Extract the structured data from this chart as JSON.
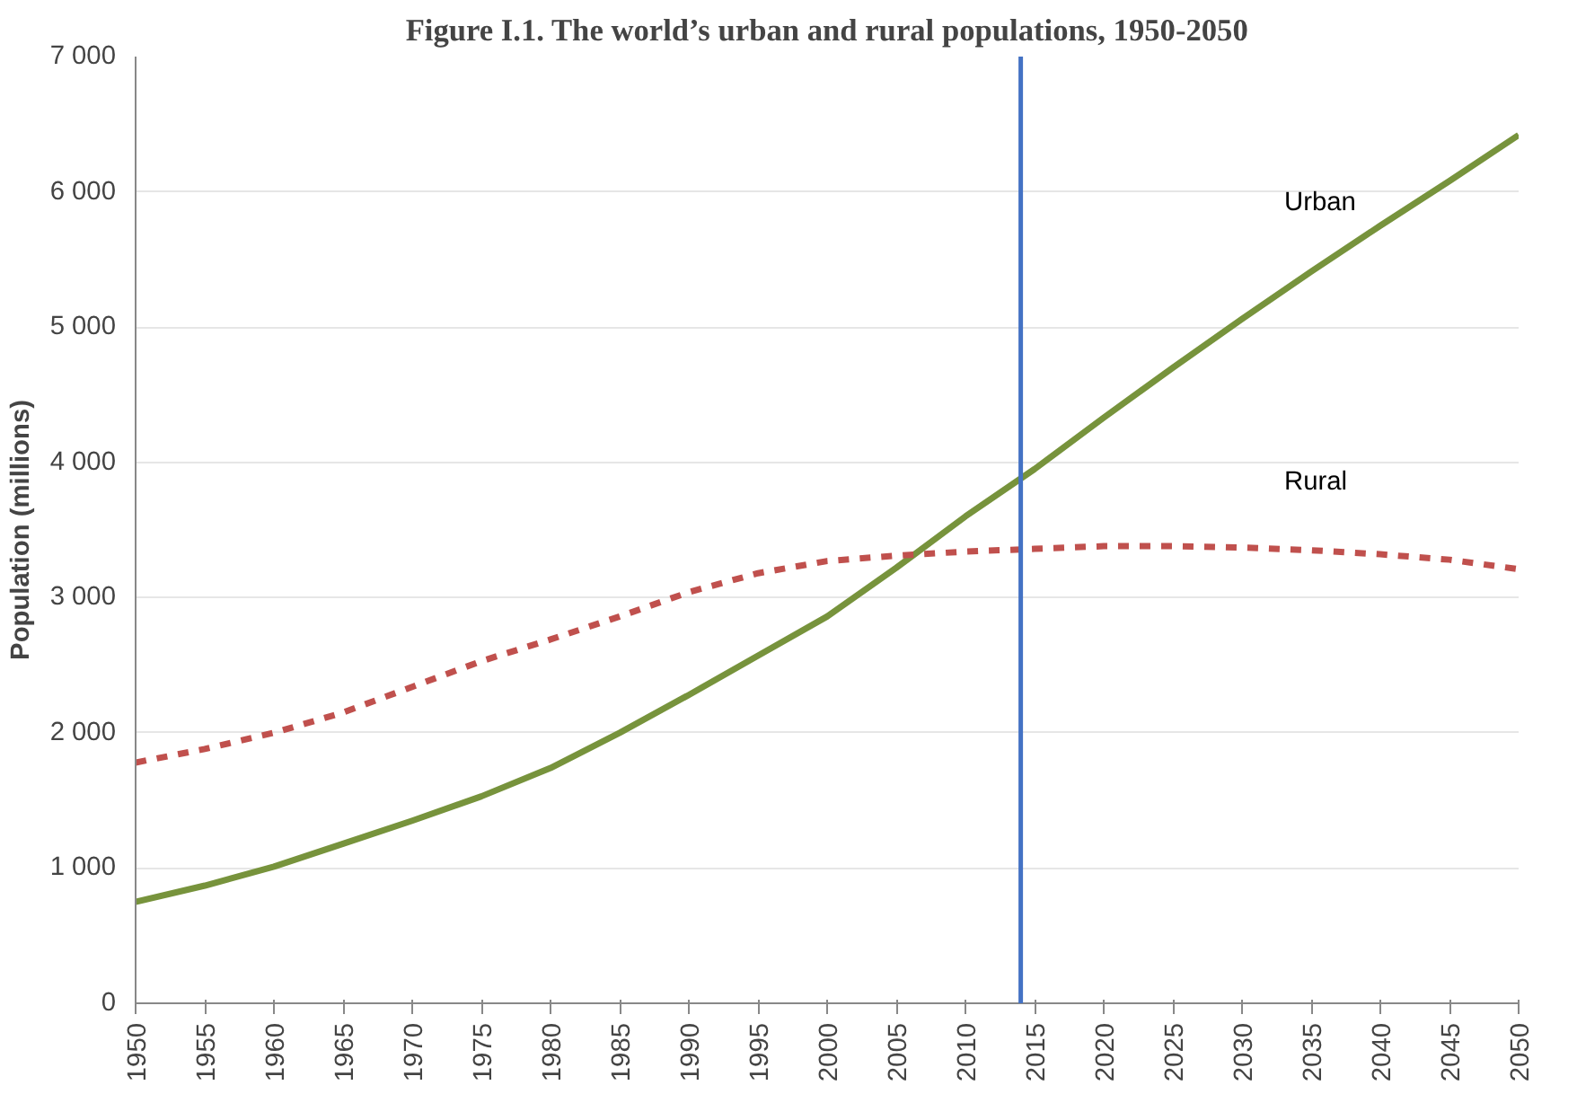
{
  "chart_data": {
    "type": "line",
    "title": "Figure I.1. The world’s urban and rural populations, 1950-2050",
    "ylabel": "Population (millions)",
    "x": [
      1950,
      1955,
      1960,
      1965,
      1970,
      1975,
      1980,
      1985,
      1990,
      1995,
      2000,
      2005,
      2010,
      2015,
      2020,
      2025,
      2030,
      2035,
      2040,
      2045,
      2050
    ],
    "series": [
      {
        "name": "Urban",
        "color": "#77933c",
        "line_style": "solid",
        "values": [
          750,
          870,
          1010,
          1180,
          1350,
          1530,
          1740,
          2000,
          2280,
          2570,
          2860,
          3220,
          3600,
          3950,
          4330,
          4700,
          5060,
          5410,
          5750,
          6080,
          6420
        ]
      },
      {
        "name": "Rural",
        "color": "#c0504d",
        "line_style": "dashed",
        "values": [
          1780,
          1880,
          2000,
          2150,
          2340,
          2530,
          2690,
          2860,
          3040,
          3180,
          3270,
          3310,
          3340,
          3360,
          3380,
          3380,
          3370,
          3350,
          3320,
          3280,
          3210
        ]
      }
    ],
    "xlim": [
      1950,
      2050
    ],
    "xticks": [
      1950,
      1955,
      1960,
      1965,
      1970,
      1975,
      1980,
      1985,
      1990,
      1995,
      2000,
      2005,
      2010,
      2015,
      2020,
      2025,
      2030,
      2035,
      2040,
      2045,
      2050
    ],
    "ylim": [
      0,
      7000
    ],
    "yticks": [
      {
        "value": 0,
        "label": "0"
      },
      {
        "value": 1000,
        "label": "1 000"
      },
      {
        "value": 2000,
        "label": "2 000"
      },
      {
        "value": 3000,
        "label": "3 000"
      },
      {
        "value": 4000,
        "label": "4 000"
      },
      {
        "value": 5000,
        "label": "5 000"
      },
      {
        "value": 6000,
        "label": "6 000"
      },
      {
        "value": 7000,
        "label": "7 000"
      }
    ],
    "ref_lines": [
      {
        "axis": "x",
        "value": 2014,
        "color": "#4472c4"
      }
    ],
    "grid": "y"
  }
}
